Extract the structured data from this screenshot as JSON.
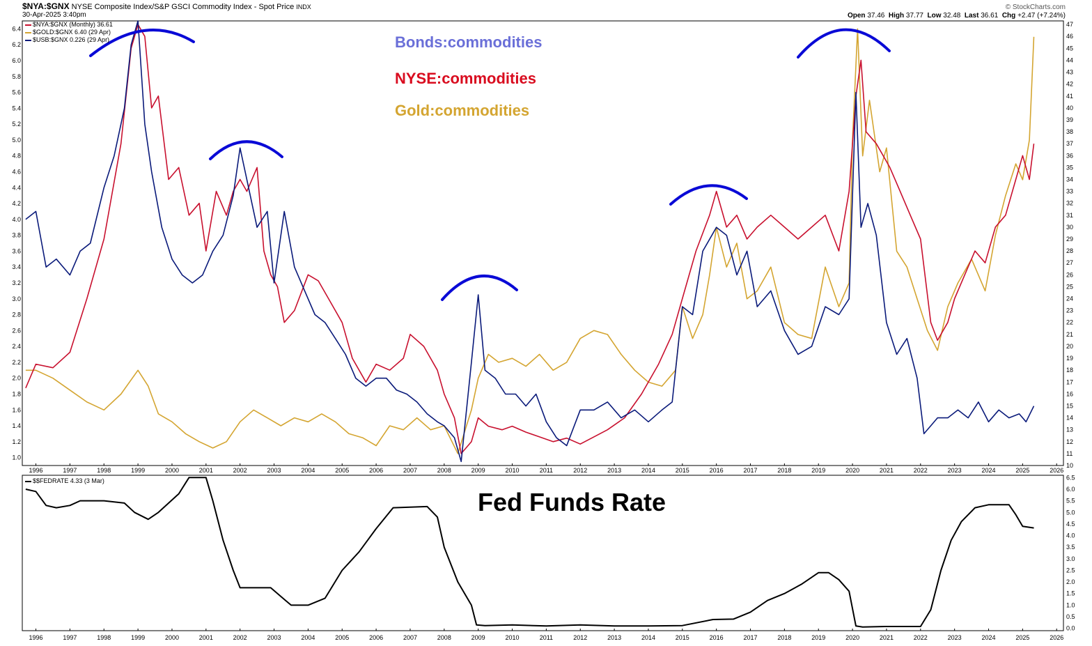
{
  "header": {
    "symbol": "$NYA:$GNX",
    "description": "NYSE Composite Index/S&P GSCI Commodity Index - Spot Price",
    "exchange": "INDX",
    "date": "30-Apr-2025 3:40pm",
    "brand": "© StockCharts.com",
    "ohlc": {
      "open_label": "Open",
      "open": "37.46",
      "high_label": "High",
      "high": "37.77",
      "low_label": "Low",
      "low": "32.48",
      "last_label": "Last",
      "last": "36.61",
      "chg_label": "Chg",
      "chg": "+2.47 (+7.24%)"
    }
  },
  "legend": [
    {
      "text": "$NYA:$GNX (Monthly) 36.61",
      "color": "#c8102e"
    },
    {
      "text": "$GOLD:$GNX 6.40 (29 Apr)",
      "color": "#d4a531"
    },
    {
      "text": "$USB:$GNX 0.226 (29 Apr)",
      "color": "#0a1a7a"
    }
  ],
  "annotations": {
    "bonds": "Bonds:commodities",
    "nyse": "NYSE:commodities",
    "gold": "Gold:commodities",
    "bonds_color": "#6a6fd8",
    "nyse_color": "#d90c1f",
    "gold_color": "#d4a531",
    "arc_color": "#0a0ad6"
  },
  "fed_panel": {
    "legend": "$$FEDRATE 4.33 (3 Mar)",
    "title": "Fed Funds Rate"
  },
  "chart_data": [
    {
      "type": "line",
      "title": "NYSE Composite Index/S&P GSCI Commodity Index - Spot Price",
      "x_range": [
        1995.6,
        2026.2
      ],
      "x_ticks": [
        "1996",
        "1997",
        "1998",
        "1999",
        "2000",
        "2001",
        "2002",
        "2003",
        "2004",
        "2005",
        "2006",
        "2007",
        "2008",
        "2009",
        "2010",
        "2011",
        "2012",
        "2013",
        "2014",
        "2015",
        "2016",
        "2017",
        "2018",
        "2019",
        "2020",
        "2021",
        "2022",
        "2023",
        "2024",
        "2025",
        "2026"
      ],
      "left_axis": {
        "range": [
          0.9,
          6.5
        ],
        "ticks": [
          1.0,
          1.2,
          1.4,
          1.6,
          1.8,
          2.0,
          2.2,
          2.4,
          2.6,
          2.8,
          3.0,
          3.2,
          3.4,
          3.6,
          3.8,
          4.0,
          4.2,
          4.4,
          4.6,
          4.8,
          5.0,
          5.2,
          5.4,
          5.6,
          5.8,
          6.0,
          6.2,
          6.4
        ]
      },
      "right_axis": {
        "range": [
          10,
          47.3
        ],
        "ticks": [
          10,
          11,
          12,
          13,
          14,
          15,
          16,
          17,
          18,
          19,
          20,
          21,
          22,
          23,
          24,
          25,
          26,
          27,
          28,
          29,
          30,
          31,
          32,
          33,
          34,
          35,
          36,
          37,
          38,
          39,
          40,
          41,
          42,
          43,
          44,
          45,
          46,
          47
        ]
      },
      "series": [
        {
          "name": "$NYA:$GNX",
          "color": "#c8102e",
          "axis": "right",
          "x": [
            1995.7,
            1996.0,
            1996.5,
            1997.0,
            1997.5,
            1998.0,
            1998.5,
            1998.8,
            1999.0,
            1999.2,
            1999.4,
            1999.6,
            1999.9,
            2000.2,
            2000.5,
            2000.8,
            2001.0,
            2001.3,
            2001.6,
            2001.8,
            2002.0,
            2002.2,
            2002.5,
            2002.7,
            2002.9,
            2003.1,
            2003.3,
            2003.6,
            2004.0,
            2004.3,
            2004.6,
            2005.0,
            2005.3,
            2005.7,
            2006.0,
            2006.4,
            2006.8,
            2007.0,
            2007.4,
            2007.8,
            2008.0,
            2008.3,
            2008.5,
            2008.8,
            2009.0,
            2009.3,
            2009.7,
            2010.0,
            2010.4,
            2010.8,
            2011.2,
            2011.6,
            2012.0,
            2012.4,
            2012.8,
            2013.3,
            2013.8,
            2014.3,
            2014.7,
            2015.0,
            2015.4,
            2015.8,
            2016.0,
            2016.3,
            2016.6,
            2016.9,
            2017.2,
            2017.6,
            2018.0,
            2018.4,
            2018.8,
            2019.2,
            2019.6,
            2019.9,
            2020.1,
            2020.25,
            2020.4,
            2020.7,
            2020.9,
            2021.1,
            2021.4,
            2021.7,
            2022.0,
            2022.3,
            2022.5,
            2022.8,
            2023.0,
            2023.3,
            2023.6,
            2023.9,
            2024.2,
            2024.5,
            2024.8,
            2025.0,
            2025.2,
            2025.33
          ],
          "y": [
            16.5,
            18.5,
            18.2,
            19.5,
            24,
            29,
            37,
            45,
            47,
            46,
            40,
            41,
            34,
            35,
            31,
            32,
            28,
            33,
            31,
            33,
            34,
            33,
            35,
            28,
            26,
            25,
            22,
            23,
            26,
            25.5,
            24,
            22,
            19,
            17,
            18.5,
            18,
            19,
            21,
            20,
            18,
            16,
            14,
            11,
            12,
            14,
            13.3,
            13,
            13.3,
            12.8,
            12.4,
            12,
            12.3,
            11.8,
            12.4,
            13,
            14,
            16,
            18.5,
            21,
            24,
            28,
            31,
            33,
            30,
            31,
            29,
            30,
            31,
            30,
            29,
            30,
            31,
            28,
            33,
            41,
            44,
            38,
            37,
            36,
            35,
            33,
            31,
            29,
            22,
            20.5,
            22,
            24,
            26,
            28,
            27,
            30,
            31,
            34,
            36,
            34,
            37
          ]
        },
        {
          "name": "$GOLD:$GNX",
          "color": "#d4a531",
          "axis": "left",
          "x": [
            1995.7,
            1996.0,
            1996.5,
            1997.0,
            1997.5,
            1998.0,
            1998.5,
            1999.0,
            1999.3,
            1999.6,
            2000.0,
            2000.4,
            2000.8,
            2001.2,
            2001.6,
            2002.0,
            2002.4,
            2002.8,
            2003.2,
            2003.6,
            2004.0,
            2004.4,
            2004.8,
            2005.2,
            2005.6,
            2006.0,
            2006.4,
            2006.8,
            2007.2,
            2007.6,
            2008.0,
            2008.4,
            2008.8,
            2009.0,
            2009.3,
            2009.6,
            2010.0,
            2010.4,
            2010.8,
            2011.2,
            2011.6,
            2012.0,
            2012.4,
            2012.8,
            2013.2,
            2013.6,
            2014.0,
            2014.4,
            2014.8,
            2015.0,
            2015.3,
            2015.6,
            2015.8,
            2016.0,
            2016.3,
            2016.6,
            2016.9,
            2017.2,
            2017.6,
            2018.0,
            2018.4,
            2018.8,
            2019.2,
            2019.6,
            2019.9,
            2020.0,
            2020.15,
            2020.3,
            2020.5,
            2020.8,
            2021.0,
            2021.3,
            2021.6,
            2021.9,
            2022.2,
            2022.5,
            2022.8,
            2023.1,
            2023.5,
            2023.9,
            2024.2,
            2024.5,
            2024.8,
            2025.0,
            2025.2,
            2025.33
          ],
          "y": [
            2.1,
            2.1,
            2.0,
            1.85,
            1.7,
            1.6,
            1.8,
            2.1,
            1.9,
            1.55,
            1.45,
            1.3,
            1.2,
            1.12,
            1.2,
            1.45,
            1.6,
            1.5,
            1.4,
            1.5,
            1.45,
            1.55,
            1.45,
            1.3,
            1.25,
            1.15,
            1.4,
            1.35,
            1.5,
            1.35,
            1.4,
            1.05,
            1.6,
            2.0,
            2.3,
            2.2,
            2.25,
            2.15,
            2.3,
            2.1,
            2.2,
            2.5,
            2.6,
            2.55,
            2.3,
            2.1,
            1.95,
            1.9,
            2.1,
            2.9,
            2.5,
            2.8,
            3.3,
            3.9,
            3.4,
            3.7,
            3.0,
            3.1,
            3.4,
            2.7,
            2.55,
            2.5,
            3.4,
            2.9,
            3.2,
            5.0,
            6.4,
            4.8,
            5.5,
            4.6,
            4.9,
            3.6,
            3.4,
            3.0,
            2.6,
            2.35,
            2.9,
            3.2,
            3.5,
            3.1,
            3.8,
            4.3,
            4.7,
            4.5,
            5.0,
            6.3
          ]
        },
        {
          "name": "$USB:$GNX",
          "color": "#0a1a7a",
          "axis": "left",
          "x": [
            1995.7,
            1996.0,
            1996.3,
            1996.6,
            1997.0,
            1997.3,
            1997.6,
            1998.0,
            1998.3,
            1998.6,
            1998.8,
            1999.0,
            1999.2,
            1999.4,
            1999.7,
            2000.0,
            2000.3,
            2000.6,
            2000.9,
            2001.2,
            2001.5,
            2001.8,
            2002.0,
            2002.2,
            2002.5,
            2002.8,
            2003.0,
            2003.3,
            2003.6,
            2003.9,
            2004.2,
            2004.5,
            2004.8,
            2005.1,
            2005.4,
            2005.7,
            2006.0,
            2006.3,
            2006.6,
            2006.9,
            2007.2,
            2007.5,
            2007.8,
            2008.0,
            2008.3,
            2008.5,
            2008.8,
            2009.0,
            2009.2,
            2009.5,
            2009.8,
            2010.1,
            2010.4,
            2010.7,
            2011.0,
            2011.3,
            2011.6,
            2012.0,
            2012.4,
            2012.8,
            2013.2,
            2013.6,
            2014.0,
            2014.4,
            2014.7,
            2015.0,
            2015.3,
            2015.6,
            2016.0,
            2016.3,
            2016.6,
            2016.9,
            2017.2,
            2017.6,
            2018.0,
            2018.4,
            2018.8,
            2019.2,
            2019.6,
            2019.9,
            2020.1,
            2020.25,
            2020.45,
            2020.7,
            2021.0,
            2021.3,
            2021.6,
            2021.9,
            2022.1,
            2022.3,
            2022.5,
            2022.8,
            2023.1,
            2023.4,
            2023.7,
            2024.0,
            2024.3,
            2024.6,
            2024.9,
            2025.1,
            2025.33
          ],
          "y": [
            4.0,
            4.1,
            3.4,
            3.5,
            3.3,
            3.6,
            3.7,
            4.4,
            4.8,
            5.4,
            6.2,
            6.5,
            5.2,
            4.6,
            3.9,
            3.5,
            3.3,
            3.2,
            3.3,
            3.6,
            3.8,
            4.3,
            4.9,
            4.5,
            3.9,
            4.1,
            3.2,
            4.1,
            3.4,
            3.1,
            2.8,
            2.7,
            2.5,
            2.3,
            2.0,
            1.9,
            2.0,
            2.0,
            1.85,
            1.8,
            1.7,
            1.55,
            1.45,
            1.4,
            1.25,
            0.95,
            2.2,
            3.05,
            2.1,
            2.0,
            1.8,
            1.8,
            1.65,
            1.8,
            1.45,
            1.25,
            1.15,
            1.6,
            1.6,
            1.7,
            1.5,
            1.6,
            1.45,
            1.6,
            1.7,
            2.9,
            2.8,
            3.6,
            3.9,
            3.8,
            3.3,
            3.6,
            2.9,
            3.1,
            2.6,
            2.3,
            2.4,
            2.9,
            2.8,
            3.0,
            5.6,
            3.9,
            4.2,
            3.8,
            2.7,
            2.3,
            2.5,
            2.0,
            1.3,
            1.4,
            1.5,
            1.5,
            1.6,
            1.5,
            1.7,
            1.45,
            1.6,
            1.5,
            1.55,
            1.45,
            1.65
          ]
        }
      ]
    },
    {
      "type": "line",
      "title": "Fed Funds Rate",
      "x_range": [
        1995.6,
        2026.2
      ],
      "y_range": [
        -0.1,
        6.6
      ],
      "y_ticks": [
        0.0,
        0.5,
        1.0,
        1.5,
        2.0,
        2.5,
        3.0,
        3.5,
        4.0,
        4.5,
        5.0,
        5.5,
        6.0,
        6.5
      ],
      "series": [
        {
          "name": "$$FEDRATE",
          "color": "#000000",
          "x": [
            1995.7,
            1996.0,
            1996.3,
            1996.6,
            1997.0,
            1997.3,
            1997.7,
            1998.0,
            1998.6,
            1998.9,
            1999.3,
            1999.6,
            1999.9,
            2000.2,
            2000.5,
            2001.0,
            2001.2,
            2001.5,
            2001.8,
            2002.0,
            2002.5,
            2002.9,
            2003.3,
            2003.5,
            2004.0,
            2004.5,
            2005.0,
            2005.5,
            2006.0,
            2006.5,
            2007.5,
            2007.8,
            2008.0,
            2008.4,
            2008.8,
            2008.95,
            2009.2,
            2010,
            2011,
            2012,
            2013,
            2014,
            2015,
            2015.9,
            2016.5,
            2017.0,
            2017.5,
            2018.0,
            2018.5,
            2019.0,
            2019.3,
            2019.6,
            2019.9,
            2020.1,
            2020.3,
            2021,
            2022.0,
            2022.3,
            2022.6,
            2022.9,
            2023.2,
            2023.6,
            2024.0,
            2024.6,
            2024.8,
            2025.0,
            2025.33
          ],
          "y": [
            6.0,
            5.9,
            5.3,
            5.2,
            5.3,
            5.5,
            5.5,
            5.5,
            5.4,
            5.0,
            4.7,
            5.0,
            5.4,
            5.8,
            6.5,
            6.5,
            5.5,
            3.8,
            2.5,
            1.75,
            1.75,
            1.75,
            1.25,
            1.0,
            1.0,
            1.3,
            2.5,
            3.3,
            4.3,
            5.2,
            5.25,
            4.8,
            3.5,
            2.0,
            1.0,
            0.15,
            0.12,
            0.15,
            0.1,
            0.15,
            0.1,
            0.1,
            0.12,
            0.38,
            0.4,
            0.7,
            1.2,
            1.5,
            1.9,
            2.4,
            2.4,
            2.1,
            1.6,
            0.1,
            0.06,
            0.08,
            0.08,
            0.8,
            2.5,
            3.8,
            4.6,
            5.2,
            5.33,
            5.33,
            4.9,
            4.4,
            4.33
          ]
        }
      ]
    }
  ]
}
